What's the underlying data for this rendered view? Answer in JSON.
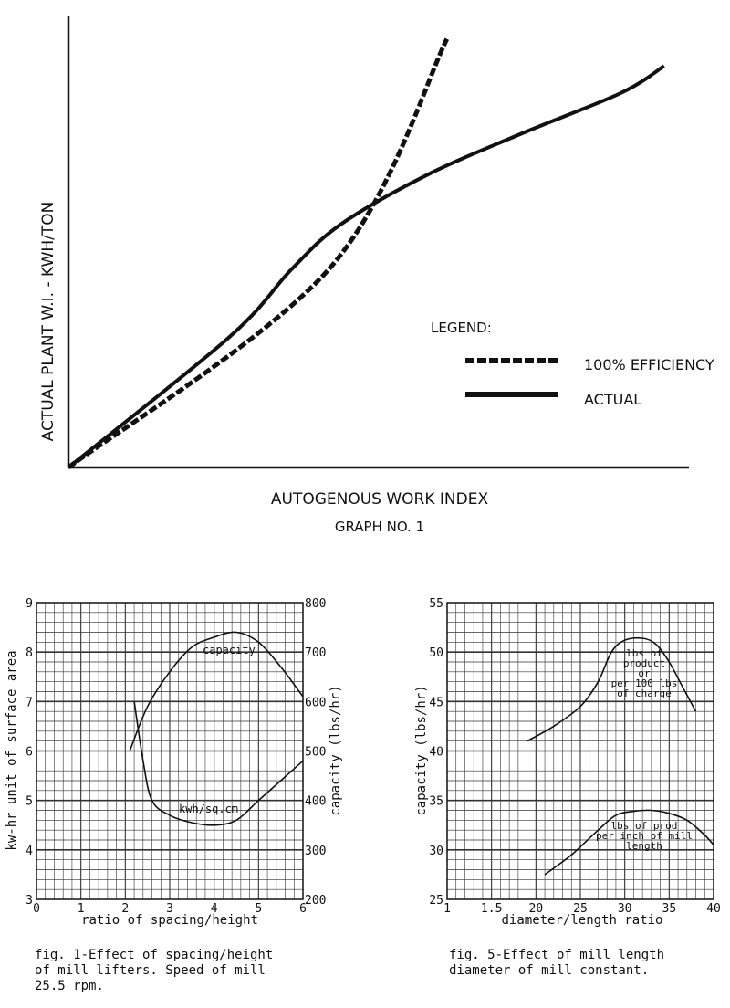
{
  "chart_data": [
    {
      "id": "graph1",
      "type": "line",
      "title": "GRAPH NO. 1",
      "xlabel": "AUTOGENOUS WORK INDEX",
      "ylabel": "ACTUAL PLANT W.I. - KWH/TON",
      "legend": {
        "title": "LEGEND:",
        "placement": "right-center"
      },
      "xlim": [
        0,
        100
      ],
      "ylim": [
        0,
        100
      ],
      "grid": false,
      "series": [
        {
          "name": "100% EFFICIENCY",
          "style": "dashed",
          "points": [
            [
              0,
              0
            ],
            [
              42,
              44
            ],
            [
              61,
              95
            ]
          ]
        },
        {
          "name": "ACTUAL",
          "style": "solid",
          "points": [
            [
              0,
              0
            ],
            [
              26,
              29
            ],
            [
              36,
              44
            ],
            [
              44,
              54
            ],
            [
              58,
              65
            ],
            [
              73,
              74
            ],
            [
              89,
              83
            ],
            [
              96,
              89
            ]
          ]
        }
      ]
    },
    {
      "id": "fig1",
      "type": "line",
      "caption": "fig. 1-Effect of spacing/height\nof mill lifters. Speed of mill\n25.5 rpm.",
      "xlabel": "ratio of spacing/height",
      "ylabel": "kw-hr unit of surface area",
      "y2label": "capacity (lbs/hr)",
      "xlim": [
        0,
        6
      ],
      "ylim": [
        3,
        9
      ],
      "y2lim": [
        200,
        800
      ],
      "xticks": [
        "0",
        "1",
        "2",
        "3",
        "4",
        "5",
        "6"
      ],
      "yticks": [
        "3",
        "4",
        "5",
        "6",
        "7",
        "8",
        "9"
      ],
      "y2ticks": [
        "200",
        "300",
        "400",
        "500",
        "600",
        "700",
        "800"
      ],
      "grid": true,
      "series": [
        {
          "name": "capacity",
          "axis": "y2",
          "points": [
            [
              2.1,
              500
            ],
            [
              2.5,
              590
            ],
            [
              3.0,
              660
            ],
            [
              3.5,
              710
            ],
            [
              4.0,
              730
            ],
            [
              4.5,
              740
            ],
            [
              5.0,
              720
            ],
            [
              5.5,
              670
            ],
            [
              6.0,
              610
            ]
          ]
        },
        {
          "name": "kwh/sq.cm",
          "axis": "y",
          "points": [
            [
              2.2,
              7.0
            ],
            [
              2.4,
              5.8
            ],
            [
              2.6,
              5.0
            ],
            [
              3.0,
              4.7
            ],
            [
              3.5,
              4.55
            ],
            [
              4.0,
              4.5
            ],
            [
              4.5,
              4.6
            ],
            [
              5.0,
              5.0
            ],
            [
              5.5,
              5.4
            ],
            [
              6.0,
              5.8
            ]
          ]
        }
      ]
    },
    {
      "id": "fig5",
      "type": "line",
      "caption": "fig. 5-Effect of mill length\ndiameter of mill constant.",
      "xlabel": "diameter/length ratio",
      "ylabel": "capacity (lbs/hr)",
      "xlim": [
        10,
        40
      ],
      "ylim": [
        25,
        55
      ],
      "xticks": [
        "1",
        "1.5",
        "20",
        "25",
        "30",
        "35",
        "40"
      ],
      "yticks": [
        "25",
        "30",
        "35",
        "40",
        "45",
        "50",
        "55"
      ],
      "grid": true,
      "series": [
        {
          "name": "lbs of product per 100 lbs of charge",
          "points": [
            [
              19,
              41
            ],
            [
              22,
              42.5
            ],
            [
              25,
              44.5
            ],
            [
              27,
              47
            ],
            [
              28.5,
              50
            ],
            [
              30,
              51.2
            ],
            [
              32,
              51.4
            ],
            [
              33.5,
              50.8
            ],
            [
              35,
              49
            ],
            [
              36.5,
              46.5
            ],
            [
              38,
              44
            ]
          ]
        },
        {
          "name": "lbs of prod per inch of mill length",
          "points": [
            [
              21,
              27.5
            ],
            [
              24,
              29.5
            ],
            [
              27,
              32
            ],
            [
              29,
              33.5
            ],
            [
              31,
              33.9
            ],
            [
              33,
              34
            ],
            [
              35,
              33.7
            ],
            [
              37,
              33
            ],
            [
              39,
              31.5
            ],
            [
              40,
              30.5
            ]
          ]
        }
      ]
    }
  ],
  "labels": {
    "graph1_legend_title": "LEGEND:",
    "graph1_legend_dashed": "100% EFFICIENCY",
    "graph1_legend_solid": "ACTUAL",
    "fig1_capacity_label": "capacity",
    "fig1_kwh_label": "kwh/sq.cm",
    "fig5_upper_label_1": "lbs of",
    "fig5_upper_label_2": "product",
    "fig5_upper_label_3": "or",
    "fig5_upper_label_4": "per 100 lbs",
    "fig5_upper_label_5": "of charge",
    "fig5_lower_label_1": "lbs of prod",
    "fig5_lower_label_2": "per inch of mill",
    "fig5_lower_label_3": "length"
  }
}
